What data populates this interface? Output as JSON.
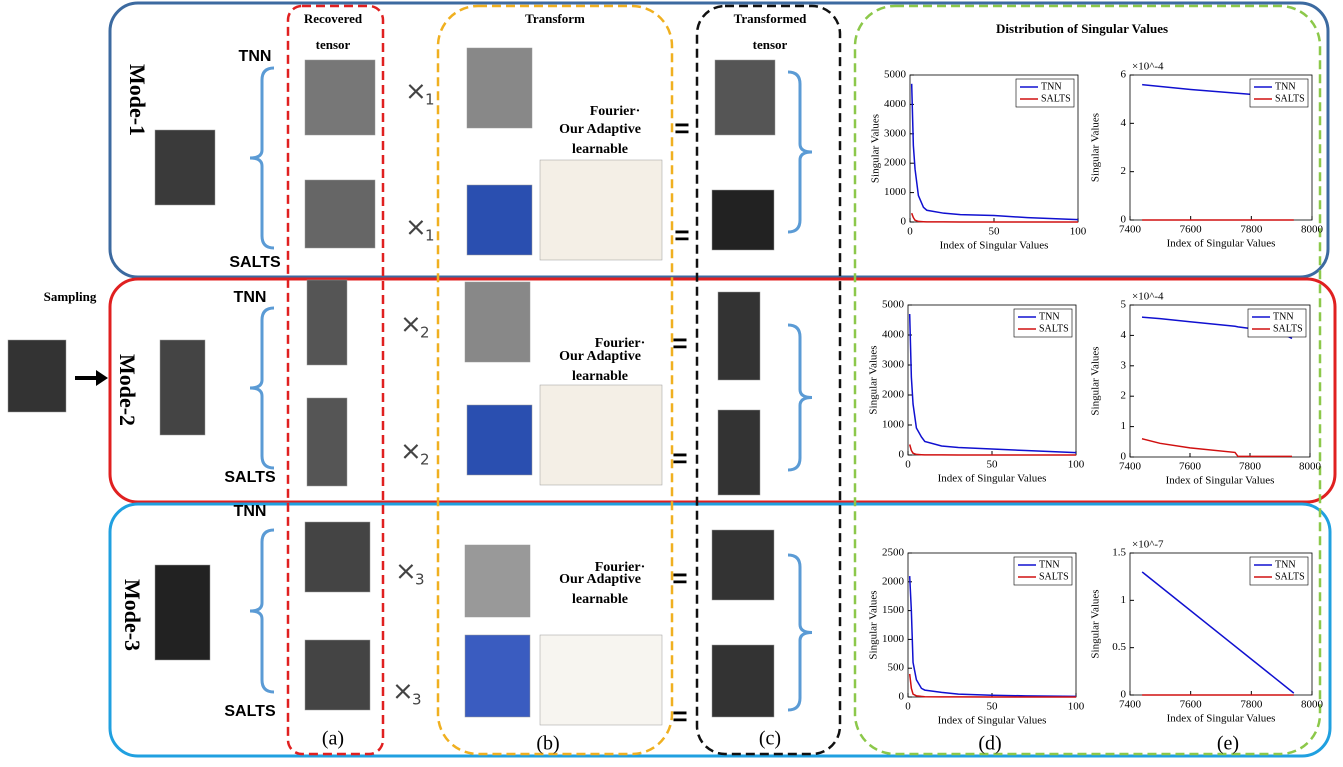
{
  "labels": {
    "sampling": "Sampling",
    "recovered": [
      "Recovered",
      "tensor"
    ],
    "transform": "Transform",
    "transformed": [
      "Transformed",
      "tensor"
    ],
    "distribution": "Distribution of Singular Values",
    "equals": "=",
    "captions": [
      "(a)",
      "(b)",
      "(c)",
      "(d)",
      "(e)"
    ]
  },
  "modes": [
    {
      "label": "Mode-1",
      "top": "TNN",
      "bottom": "SALTS",
      "op": {
        "symbol": "×",
        "index": "1"
      },
      "fourier": "Fourier·",
      "adaptive": [
        "Our Adaptive",
        "learnable"
      ]
    },
    {
      "label": "Mode-2",
      "top": "TNN",
      "bottom": "SALTS",
      "op": {
        "symbol": "×",
        "index": "2"
      },
      "fourier": "Fourier·",
      "adaptive": [
        "Our Adaptive",
        "learnable"
      ]
    },
    {
      "label": "Mode-3",
      "top": "TNN",
      "bottom": "SALTS",
      "op": {
        "symbol": "×",
        "index": "3"
      },
      "fourier": "Fourier·",
      "adaptive": [
        "Our Adaptive",
        "learnable"
      ]
    }
  ],
  "chart_data": [
    {
      "type": "line",
      "x_label": "Index of Singular Values",
      "y_label": "Singular Values",
      "x": [
        1,
        2,
        3,
        5,
        8,
        10,
        20,
        30,
        50,
        70,
        100
      ],
      "xlim": [
        0,
        100
      ],
      "xticks": [
        0,
        50,
        100
      ],
      "ylim": [
        0,
        5000
      ],
      "yticks": [
        0,
        1000,
        2000,
        3000,
        4000,
        5000
      ],
      "series": [
        {
          "name": "TNN",
          "color": "#1010d0",
          "values": [
            4700,
            2600,
            1800,
            900,
            500,
            400,
            300,
            250,
            220,
            150,
            80
          ]
        },
        {
          "name": "SALTS",
          "color": "#d01010",
          "values": [
            300,
            150,
            60,
            20,
            10,
            5,
            3,
            2,
            1,
            1,
            1
          ]
        }
      ]
    },
    {
      "type": "line",
      "x_label": "Index of Singular Values",
      "y_label": "Singular Values",
      "y_multiplier": "×10^-4",
      "x": [
        7440,
        7600,
        7800,
        7940
      ],
      "xlim": [
        7400,
        8000
      ],
      "xticks": [
        7400,
        7600,
        7800,
        8000
      ],
      "ylim": [
        0,
        6
      ],
      "yticks": [
        0,
        2,
        4,
        6
      ],
      "series": [
        {
          "name": "TNN",
          "color": "#1010d0",
          "values": [
            5.6,
            5.4,
            5.2,
            5.0
          ]
        },
        {
          "name": "SALTS",
          "color": "#d01010",
          "values": [
            0,
            0,
            0,
            0
          ]
        }
      ]
    },
    {
      "type": "line",
      "x_label": "Index of Singular Values",
      "y_label": "Singular Values",
      "x": [
        1,
        2,
        3,
        5,
        8,
        10,
        20,
        30,
        50,
        70,
        100
      ],
      "xlim": [
        0,
        100
      ],
      "xticks": [
        0,
        50,
        100
      ],
      "ylim": [
        0,
        5000
      ],
      "yticks": [
        0,
        1000,
        2000,
        3000,
        4000,
        5000
      ],
      "series": [
        {
          "name": "TNN",
          "color": "#1010d0",
          "values": [
            4700,
            2600,
            1700,
            900,
            600,
            450,
            300,
            250,
            200,
            150,
            80
          ]
        },
        {
          "name": "SALTS",
          "color": "#d01010",
          "values": [
            350,
            150,
            60,
            20,
            10,
            5,
            3,
            2,
            1,
            1,
            1
          ]
        }
      ]
    },
    {
      "type": "line",
      "x_label": "Index of Singular Values",
      "y_label": "Singular Values",
      "y_multiplier": "×10^-4",
      "x": [
        7440,
        7500,
        7600,
        7750,
        7760,
        7900,
        7940
      ],
      "xlim": [
        7400,
        8000
      ],
      "xticks": [
        7400,
        7600,
        7800,
        8000
      ],
      "ylim": [
        0,
        5
      ],
      "yticks": [
        0,
        1,
        2,
        3,
        4,
        5
      ],
      "series": [
        {
          "name": "TNN",
          "color": "#1010d0",
          "values": [
            4.6,
            4.55,
            4.45,
            4.3,
            4.28,
            4.1,
            3.9
          ]
        },
        {
          "name": "SALTS",
          "color": "#d01010",
          "values": [
            0.6,
            0.45,
            0.3,
            0.15,
            0.02,
            0.02,
            0.02
          ]
        }
      ]
    },
    {
      "type": "line",
      "x_label": "Index of Singular Values",
      "y_label": "Singular Values",
      "x": [
        1,
        2,
        3,
        5,
        8,
        10,
        20,
        30,
        50,
        70,
        100
      ],
      "xlim": [
        0,
        100
      ],
      "xticks": [
        0,
        50,
        100
      ],
      "ylim": [
        0,
        2500
      ],
      "yticks": [
        0,
        500,
        1000,
        1500,
        2000,
        2500
      ],
      "series": [
        {
          "name": "TNN",
          "color": "#1010d0",
          "values": [
            2100,
            1500,
            600,
            300,
            150,
            120,
            80,
            50,
            30,
            20,
            10
          ]
        },
        {
          "name": "SALTS",
          "color": "#d01010",
          "values": [
            400,
            150,
            50,
            20,
            10,
            5,
            3,
            2,
            1,
            1,
            1
          ]
        }
      ]
    },
    {
      "type": "line",
      "x_label": "Index of Singular Values",
      "y_label": "Singular Values",
      "y_multiplier": "×10^-7",
      "x": [
        7440,
        7940
      ],
      "xlim": [
        7400,
        8000
      ],
      "xticks": [
        7400,
        7600,
        7800,
        8000
      ],
      "ylim": [
        0,
        1.5
      ],
      "yticks": [
        0,
        0.5,
        1,
        1.5
      ],
      "series": [
        {
          "name": "TNN",
          "color": "#1010d0",
          "values": [
            1.3,
            0.02
          ]
        },
        {
          "name": "SALTS",
          "color": "#d01010",
          "values": [
            0,
            0
          ]
        }
      ]
    }
  ]
}
